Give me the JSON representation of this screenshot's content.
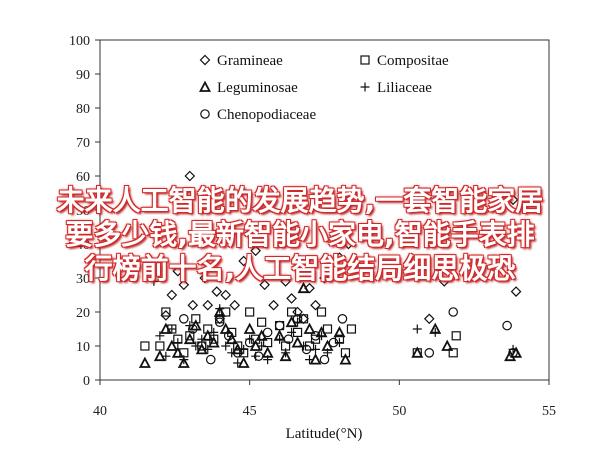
{
  "overlay": {
    "lines": [
      "未来人工智能的发展趋势,一套智能家居",
      "要多少钱,最新智能小家电,智能手表排",
      "行榜前十名,人工智能结局细思极恐"
    ],
    "color": "#ffffff",
    "shadow": "#d12a2a"
  },
  "chart_data": {
    "type": "scatter",
    "xlabel": "Latitude(°N)",
    "ylabel": "",
    "xlim": [
      40,
      55
    ],
    "ylim": [
      0,
      100
    ],
    "xticks": [
      40,
      45,
      50,
      55
    ],
    "yticks": [
      0,
      10,
      20,
      30,
      40,
      50,
      60,
      70,
      80,
      90,
      100
    ],
    "grid": false,
    "legend_position": "top-left",
    "series": [
      {
        "name": "Gramineae",
        "marker": "diamond",
        "points": [
          [
            42.2,
            19
          ],
          [
            42.4,
            25
          ],
          [
            42.6,
            32
          ],
          [
            42.8,
            28
          ],
          [
            43.0,
            60
          ],
          [
            43.1,
            22
          ],
          [
            43.3,
            42
          ],
          [
            43.5,
            30
          ],
          [
            43.6,
            22
          ],
          [
            43.9,
            26
          ],
          [
            44.0,
            18
          ],
          [
            44.2,
            25
          ],
          [
            44.5,
            22
          ],
          [
            44.8,
            35
          ],
          [
            45.2,
            38
          ],
          [
            45.5,
            28
          ],
          [
            45.8,
            22
          ],
          [
            46.2,
            29
          ],
          [
            46.4,
            24
          ],
          [
            46.6,
            20
          ],
          [
            46.8,
            18
          ],
          [
            47.0,
            27
          ],
          [
            47.2,
            22
          ],
          [
            47.5,
            30
          ],
          [
            48.0,
            36
          ],
          [
            48.3,
            40
          ],
          [
            51.0,
            18
          ],
          [
            51.5,
            29
          ],
          [
            53.8,
            53
          ],
          [
            53.9,
            26
          ]
        ]
      },
      {
        "name": "Compositae",
        "marker": "square",
        "points": [
          [
            41.5,
            10
          ],
          [
            42.0,
            10
          ],
          [
            42.2,
            20
          ],
          [
            42.4,
            15
          ],
          [
            42.6,
            12
          ],
          [
            42.8,
            8
          ],
          [
            43.0,
            13
          ],
          [
            43.2,
            18
          ],
          [
            43.4,
            10
          ],
          [
            43.6,
            15
          ],
          [
            43.8,
            12
          ],
          [
            44.0,
            18
          ],
          [
            44.2,
            20
          ],
          [
            44.4,
            14
          ],
          [
            44.6,
            10
          ],
          [
            44.8,
            8
          ],
          [
            45.0,
            20
          ],
          [
            45.2,
            12
          ],
          [
            45.4,
            17
          ],
          [
            45.6,
            11
          ],
          [
            46.0,
            16
          ],
          [
            46.2,
            10
          ],
          [
            46.4,
            20
          ],
          [
            46.6,
            14
          ],
          [
            46.8,
            18
          ],
          [
            47.0,
            10
          ],
          [
            47.2,
            12
          ],
          [
            47.4,
            20
          ],
          [
            47.6,
            15
          ],
          [
            48.0,
            12
          ],
          [
            48.2,
            8
          ],
          [
            48.4,
            15
          ],
          [
            50.6,
            8
          ],
          [
            51.8,
            8
          ],
          [
            51.9,
            13
          ]
        ]
      },
      {
        "name": "Leguminosae",
        "marker": "triangle",
        "points": [
          [
            41.5,
            5
          ],
          [
            42.0,
            7
          ],
          [
            42.2,
            15
          ],
          [
            42.4,
            10
          ],
          [
            42.6,
            8
          ],
          [
            42.8,
            5
          ],
          [
            43.0,
            12
          ],
          [
            43.2,
            16
          ],
          [
            43.4,
            9
          ],
          [
            43.6,
            13
          ],
          [
            43.8,
            11
          ],
          [
            44.0,
            20
          ],
          [
            44.2,
            15
          ],
          [
            44.4,
            12
          ],
          [
            44.6,
            9
          ],
          [
            44.8,
            5
          ],
          [
            45.0,
            15
          ],
          [
            45.2,
            10
          ],
          [
            45.4,
            13
          ],
          [
            45.6,
            8
          ],
          [
            46.0,
            13
          ],
          [
            46.2,
            7
          ],
          [
            46.4,
            17
          ],
          [
            46.6,
            11
          ],
          [
            46.8,
            27
          ],
          [
            47.0,
            15
          ],
          [
            47.2,
            6
          ],
          [
            47.4,
            14
          ],
          [
            47.6,
            10
          ],
          [
            48.0,
            14
          ],
          [
            48.2,
            6
          ],
          [
            50.6,
            8
          ],
          [
            51.2,
            15
          ],
          [
            51.6,
            10
          ],
          [
            53.7,
            7
          ],
          [
            53.9,
            8
          ]
        ]
      },
      {
        "name": "Liliaceae",
        "marker": "plus",
        "points": [
          [
            41.8,
            29
          ],
          [
            42.0,
            13
          ],
          [
            42.2,
            7
          ],
          [
            42.4,
            15
          ],
          [
            42.6,
            11
          ],
          [
            42.8,
            6
          ],
          [
            43.0,
            16
          ],
          [
            43.2,
            10
          ],
          [
            43.4,
            12
          ],
          [
            43.6,
            9
          ],
          [
            43.8,
            14
          ],
          [
            44.0,
            21
          ],
          [
            44.2,
            10
          ],
          [
            44.4,
            8
          ],
          [
            44.6,
            5
          ],
          [
            44.8,
            9
          ],
          [
            45.0,
            12
          ],
          [
            45.2,
            7
          ],
          [
            45.4,
            10
          ],
          [
            45.6,
            6
          ],
          [
            46.0,
            12
          ],
          [
            46.2,
            8
          ],
          [
            46.4,
            14
          ],
          [
            46.6,
            17
          ],
          [
            46.8,
            10
          ],
          [
            47.0,
            6
          ],
          [
            47.2,
            9
          ],
          [
            47.4,
            13
          ],
          [
            47.6,
            8
          ],
          [
            48.0,
            11
          ],
          [
            50.6,
            15
          ],
          [
            51.2,
            14
          ],
          [
            53.8,
            9
          ]
        ]
      },
      {
        "name": "Chenopodiaceae",
        "marker": "circle",
        "points": [
          [
            42.8,
            18
          ],
          [
            43.1,
            15
          ],
          [
            43.4,
            10
          ],
          [
            43.7,
            6
          ],
          [
            44.0,
            17
          ],
          [
            44.3,
            13
          ],
          [
            44.6,
            8
          ],
          [
            45.0,
            11
          ],
          [
            45.3,
            7
          ],
          [
            45.6,
            14
          ],
          [
            46.0,
            16
          ],
          [
            46.3,
            12
          ],
          [
            46.6,
            18
          ],
          [
            46.9,
            9
          ],
          [
            47.2,
            13
          ],
          [
            47.5,
            6
          ],
          [
            47.8,
            11
          ],
          [
            48.1,
            18
          ],
          [
            51.0,
            8
          ],
          [
            51.8,
            20
          ],
          [
            53.6,
            16
          ],
          [
            53.8,
            8
          ]
        ]
      }
    ]
  }
}
